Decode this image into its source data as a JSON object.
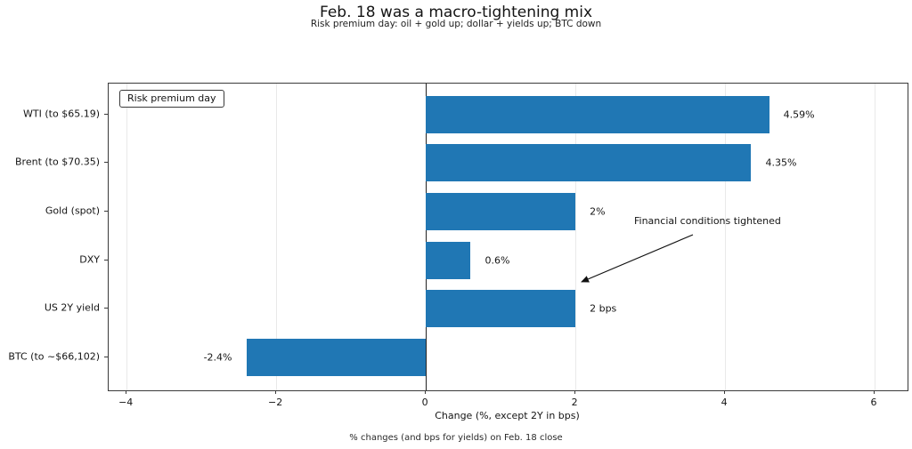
{
  "colors": {
    "bar": "#2077b4",
    "zero_line": "#222222",
    "grid": "#e9e9e9",
    "spine": "#3a3a3a",
    "text": "#141414"
  },
  "chart_data": {
    "type": "bar",
    "orientation": "horizontal",
    "title": "Feb. 18 was a macro-tightening mix",
    "subtitle": "Risk premium day: oil + gold up; dollar + yields up; BTC down",
    "xlabel": "Change (%, except 2Y in bps)",
    "footnote": "% changes (and bps for yields) on Feb. 18 close",
    "legend": "Risk premium day",
    "legend_position": "upper left",
    "annotation": {
      "text": "Financial conditions tightened",
      "points_to": "US 2Y yield"
    },
    "categories": [
      "WTI (to $65.19)",
      "Brent (to $70.35)",
      "Gold (spot)",
      "DXY",
      "US 2Y yield",
      "BTC (to ~$66,102)"
    ],
    "values": [
      4.59,
      4.35,
      2,
      0.6,
      2,
      -2.4
    ],
    "value_labels": [
      "4.59%",
      "4.35%",
      "2%",
      "0.6%",
      "2 bps",
      "-2.4%"
    ],
    "xlim": [
      -4.24,
      6.44
    ],
    "xticks": [
      -4,
      -2,
      0,
      2,
      4,
      6
    ],
    "xtick_labels": [
      "−4",
      "−2",
      "0",
      "2",
      "4",
      "6"
    ],
    "grid": true
  }
}
